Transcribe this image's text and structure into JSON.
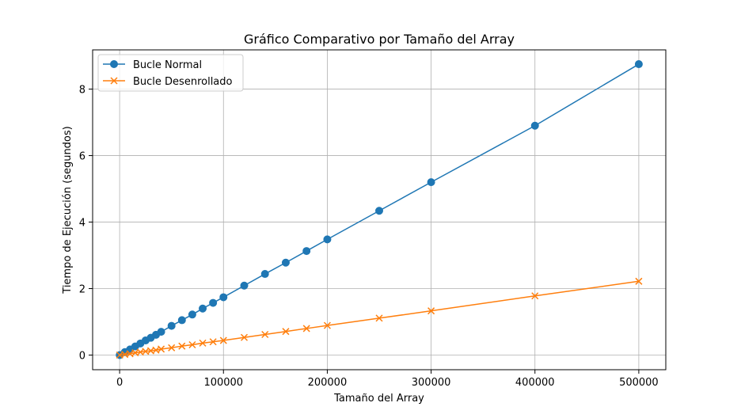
{
  "chart_data": {
    "type": "line",
    "title": "Gráfico Comparativo por Tamaño del Array",
    "xlabel": "Tamaño del Array",
    "ylabel": "Tiempo de Ejecución (segundos)",
    "xlim": [
      -26000,
      526000
    ],
    "ylim": [
      -0.44,
      9.18
    ],
    "x_ticks": [
      0,
      100000,
      200000,
      300000,
      400000,
      500000
    ],
    "x_tick_labels": [
      "0",
      "100000",
      "200000",
      "300000",
      "400000",
      "500000"
    ],
    "y_ticks": [
      0,
      2,
      4,
      6,
      8
    ],
    "y_tick_labels": [
      "0",
      "2",
      "4",
      "6",
      "8"
    ],
    "grid": true,
    "legend_position": "upper-left",
    "x": [
      100,
      5000,
      10000,
      15000,
      20000,
      25000,
      30000,
      35000,
      40000,
      50000,
      60000,
      70000,
      80000,
      90000,
      100000,
      120000,
      140000,
      160000,
      180000,
      200000,
      250000,
      300000,
      400000,
      500000
    ],
    "series": [
      {
        "name": "Bucle Normal",
        "color": "#1f77b4",
        "marker": "circle",
        "values": [
          0.0,
          0.09,
          0.17,
          0.26,
          0.35,
          0.44,
          0.52,
          0.61,
          0.7,
          0.88,
          1.05,
          1.22,
          1.4,
          1.57,
          1.74,
          2.09,
          2.44,
          2.78,
          3.13,
          3.48,
          4.34,
          5.2,
          6.9,
          8.75
        ]
      },
      {
        "name": "Bucle Desenrollado",
        "color": "#ff7f0e",
        "marker": "x",
        "values": [
          0.0,
          0.02,
          0.04,
          0.07,
          0.09,
          0.11,
          0.13,
          0.15,
          0.18,
          0.22,
          0.27,
          0.31,
          0.36,
          0.4,
          0.44,
          0.53,
          0.62,
          0.71,
          0.8,
          0.89,
          1.11,
          1.33,
          1.78,
          2.22
        ]
      }
    ]
  }
}
